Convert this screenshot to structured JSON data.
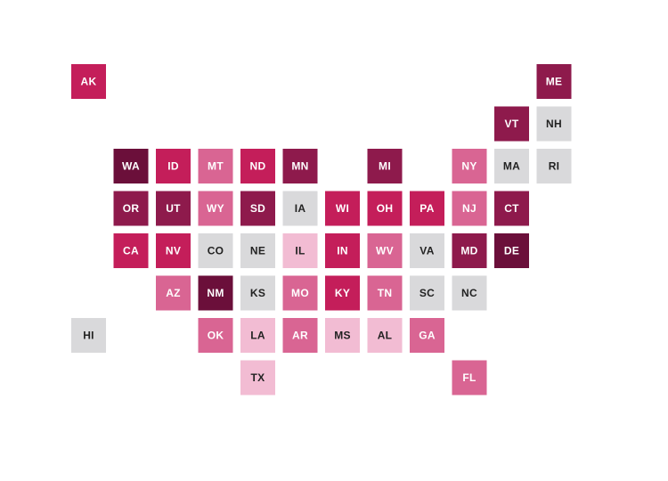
{
  "map": {
    "rows": [
      [
        {
          "label": "AK",
          "color": "#c41e5a"
        },
        null,
        null,
        null,
        null,
        null,
        null,
        null,
        null,
        null,
        null,
        {
          "label": "ME",
          "color": "#8e1a4c"
        }
      ],
      [
        null,
        null,
        null,
        null,
        null,
        null,
        null,
        null,
        null,
        null,
        {
          "label": "VT",
          "color": "#8e1a4c"
        },
        {
          "label": "NH",
          "color": "#d9d9db"
        }
      ],
      [
        null,
        {
          "label": "WA",
          "color": "#6b0f3a"
        },
        {
          "label": "ID",
          "color": "#c41e5a"
        },
        {
          "label": "MT",
          "color": "#d96593"
        },
        {
          "label": "ND",
          "color": "#c41e5a"
        },
        {
          "label": "MN",
          "color": "#8e1a4c"
        },
        null,
        {
          "label": "MI",
          "color": "#8e1a4c"
        },
        null,
        {
          "label": "NY",
          "color": "#d96593"
        },
        {
          "label": "MA",
          "color": "#d9d9db"
        },
        {
          "label": "RI",
          "color": "#d9d9db"
        }
      ],
      [
        null,
        {
          "label": "OR",
          "color": "#8e1a4c"
        },
        {
          "label": "UT",
          "color": "#8e1a4c"
        },
        {
          "label": "WY",
          "color": "#d96593"
        },
        {
          "label": "SD",
          "color": "#8e1a4c"
        },
        {
          "label": "IA",
          "color": "#d9d9db"
        },
        {
          "label": "WI",
          "color": "#c41e5a"
        },
        {
          "label": "OH",
          "color": "#c41e5a"
        },
        {
          "label": "PA",
          "color": "#c41e5a"
        },
        {
          "label": "NJ",
          "color": "#d96593"
        },
        {
          "label": "CT",
          "color": "#8e1a4c"
        },
        null
      ],
      [
        null,
        {
          "label": "CA",
          "color": "#c41e5a"
        },
        {
          "label": "NV",
          "color": "#c41e5a"
        },
        {
          "label": "CO",
          "color": "#d9d9db"
        },
        {
          "label": "NE",
          "color": "#d9d9db"
        },
        {
          "label": "IL",
          "color": "#f2bcd3"
        },
        {
          "label": "IN",
          "color": "#c41e5a"
        },
        {
          "label": "WV",
          "color": "#d96593"
        },
        {
          "label": "VA",
          "color": "#d9d9db"
        },
        {
          "label": "MD",
          "color": "#8e1a4c"
        },
        {
          "label": "DE",
          "color": "#6b0f3a"
        },
        null
      ],
      [
        null,
        null,
        {
          "label": "AZ",
          "color": "#d96593"
        },
        {
          "label": "NM",
          "color": "#6b0f3a"
        },
        {
          "label": "KS",
          "color": "#d9d9db"
        },
        {
          "label": "MO",
          "color": "#d96593"
        },
        {
          "label": "KY",
          "color": "#c41e5a"
        },
        {
          "label": "TN",
          "color": "#d96593"
        },
        {
          "label": "SC",
          "color": "#d9d9db"
        },
        {
          "label": "NC",
          "color": "#d9d9db"
        },
        null,
        null
      ],
      [
        {
          "label": "HI",
          "color": "#d9d9db"
        },
        null,
        null,
        {
          "label": "OK",
          "color": "#d96593"
        },
        {
          "label": "LA",
          "color": "#f2bcd3"
        },
        {
          "label": "AR",
          "color": "#d96593"
        },
        {
          "label": "MS",
          "color": "#f2bcd3"
        },
        {
          "label": "AL",
          "color": "#f2bcd3"
        },
        {
          "label": "GA",
          "color": "#d96593"
        },
        null,
        null,
        null
      ],
      [
        null,
        null,
        null,
        null,
        {
          "label": "TX",
          "color": "#f2bcd3"
        },
        null,
        null,
        null,
        null,
        {
          "label": "FL",
          "color": "#d96593"
        },
        null,
        null
      ]
    ]
  }
}
